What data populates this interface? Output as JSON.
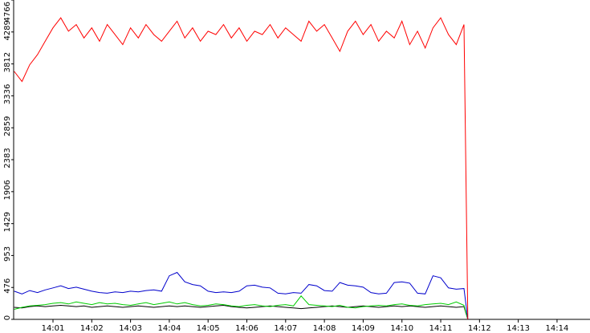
{
  "chart_data": {
    "type": "line",
    "x": [
      0,
      0.2,
      0.4,
      0.6,
      0.8,
      1.0,
      1.2,
      1.4,
      1.6,
      1.8,
      2.0,
      2.2,
      2.4,
      2.6,
      2.8,
      3.0,
      3.2,
      3.4,
      3.6,
      3.8,
      4.0,
      4.2,
      4.4,
      4.6,
      4.8,
      5.0,
      5.2,
      5.4,
      5.6,
      5.8,
      6.0,
      6.2,
      6.4,
      6.6,
      6.8,
      7.0,
      7.2,
      7.4,
      7.6,
      7.8,
      8.0,
      8.2,
      8.4,
      8.6,
      8.8,
      9.0,
      9.2,
      9.4,
      9.6,
      9.8,
      10.0,
      10.2,
      10.4,
      10.6,
      10.8,
      11.0,
      11.2,
      11.4,
      11.6,
      11.7
    ],
    "series": [
      {
        "color": "#ff0000",
        "values": [
          3700,
          3550,
          3800,
          3950,
          4150,
          4350,
          4500,
          4300,
          4400,
          4200,
          4350,
          4150,
          4400,
          4250,
          4100,
          4350,
          4200,
          4400,
          4250,
          4150,
          4300,
          4450,
          4200,
          4350,
          4150,
          4300,
          4250,
          4400,
          4200,
          4350,
          4150,
          4300,
          4250,
          4400,
          4200,
          4350,
          4250,
          4150,
          4450,
          4300,
          4400,
          4200,
          4000,
          4300,
          4450,
          4250,
          4400,
          4150,
          4300,
          4200,
          4450,
          4100,
          4300,
          4050,
          4350,
          4500,
          4250,
          4100,
          4400,
          0
        ]
      },
      {
        "color": "#0000cc",
        "values": [
          420,
          380,
          430,
          400,
          440,
          470,
          500,
          460,
          480,
          450,
          420,
          400,
          390,
          410,
          400,
          420,
          410,
          430,
          440,
          420,
          650,
          700,
          560,
          520,
          500,
          420,
          400,
          410,
          400,
          420,
          500,
          510,
          480,
          470,
          390,
          380,
          400,
          390,
          520,
          500,
          430,
          420,
          550,
          510,
          500,
          480,
          400,
          380,
          390,
          550,
          560,
          540,
          390,
          380,
          650,
          620,
          470,
          450,
          460,
          0
        ]
      },
      {
        "color": "#00cc00",
        "values": [
          150,
          180,
          200,
          210,
          220,
          240,
          250,
          230,
          260,
          240,
          220,
          250,
          230,
          240,
          220,
          210,
          230,
          250,
          220,
          240,
          260,
          230,
          250,
          220,
          200,
          210,
          230,
          220,
          200,
          190,
          210,
          220,
          200,
          190,
          210,
          220,
          200,
          350,
          220,
          210,
          200,
          190,
          210,
          180,
          170,
          190,
          200,
          210,
          200,
          220,
          230,
          210,
          200,
          220,
          230,
          240,
          220,
          260,
          210,
          0
        ]
      },
      {
        "color": "#000000",
        "values": [
          180,
          170,
          190,
          200,
          190,
          200,
          210,
          200,
          190,
          200,
          180,
          190,
          200,
          190,
          180,
          190,
          200,
          190,
          180,
          190,
          200,
          190,
          200,
          190,
          180,
          190,
          200,
          210,
          190,
          180,
          170,
          180,
          190,
          200,
          190,
          180,
          170,
          160,
          170,
          180,
          190,
          200,
          190,
          180,
          190,
          200,
          190,
          180,
          190,
          200,
          190,
          200,
          190,
          180,
          190,
          200,
          190,
          180,
          190,
          0
        ]
      }
    ],
    "xlim": [
      0,
      14.85
    ],
    "xticks": [
      {
        "value": 1,
        "label": "14:01"
      },
      {
        "value": 2,
        "label": "14:02"
      },
      {
        "value": 3,
        "label": "14:03"
      },
      {
        "value": 4,
        "label": "14:04"
      },
      {
        "value": 5,
        "label": "14:05"
      },
      {
        "value": 6,
        "label": "14:06"
      },
      {
        "value": 7,
        "label": "14:07"
      },
      {
        "value": 8,
        "label": "14:08"
      },
      {
        "value": 9,
        "label": "14:09"
      },
      {
        "value": 10,
        "label": "14:10"
      },
      {
        "value": 11,
        "label": "14:11"
      },
      {
        "value": 12,
        "label": "14:12"
      },
      {
        "value": 13,
        "label": "14:13"
      },
      {
        "value": 14,
        "label": "14:14"
      }
    ],
    "ylim": [
      0,
      4766
    ],
    "yticks": [
      0,
      476,
      953,
      1429,
      1906,
      2383,
      2859,
      3336,
      3812,
      4289,
      4766
    ]
  }
}
